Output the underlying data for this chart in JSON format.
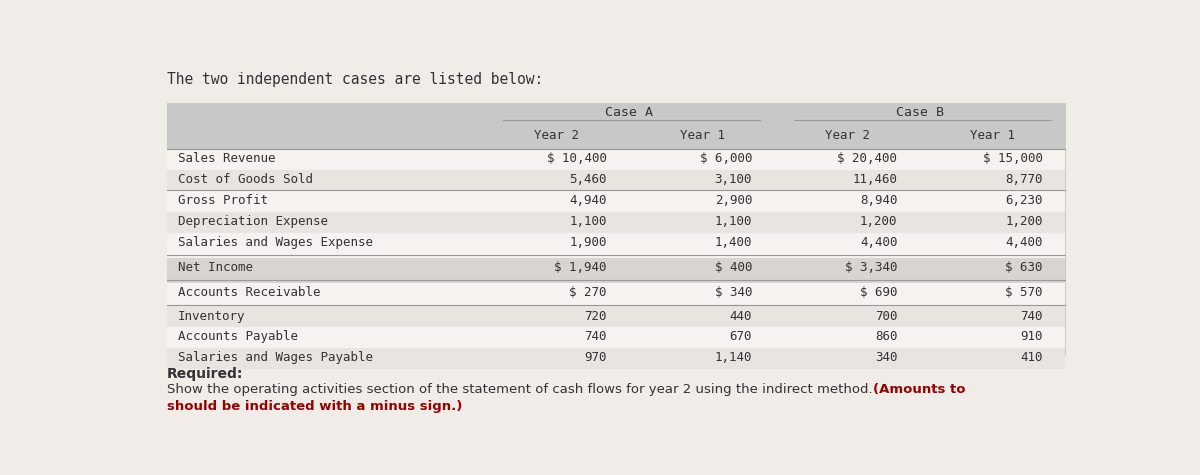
{
  "title_text": "The two independent cases are listed below:",
  "rows": [
    [
      "Sales Revenue",
      "$ 10,400",
      "$ 6,000",
      "$ 20,400",
      "$ 15,000"
    ],
    [
      "Cost of Goods Sold",
      "5,460",
      "3,100",
      "11,460",
      "8,770"
    ],
    [
      "Gross Profit",
      "4,940",
      "2,900",
      "8,940",
      "6,230"
    ],
    [
      "Depreciation Expense",
      "1,100",
      "1,100",
      "1,200",
      "1,200"
    ],
    [
      "Salaries and Wages Expense",
      "1,900",
      "1,400",
      "4,400",
      "4,400"
    ],
    [
      "Net Income",
      "$ 1,940",
      "$ 400",
      "$ 3,340",
      "$ 630"
    ],
    [
      "Accounts Receivable",
      "$ 270",
      "$ 340",
      "$ 690",
      "$ 570"
    ],
    [
      "Inventory",
      "720",
      "440",
      "700",
      "740"
    ],
    [
      "Accounts Payable",
      "740",
      "670",
      "860",
      "910"
    ],
    [
      "Salaries and Wages Payable",
      "970",
      "1,140",
      "340",
      "410"
    ]
  ],
  "font_color": "#333333",
  "red_color": "#990000",
  "bg_main": "#f0ece8",
  "bg_header": "#c8c8c8",
  "bg_row_odd": "#e8e4e0",
  "bg_row_even": "#f5f2ef",
  "bg_net_income": "#d8d4d0",
  "font_size": 9.0,
  "header_font_size": 9.5,
  "title_font_size": 10.5
}
